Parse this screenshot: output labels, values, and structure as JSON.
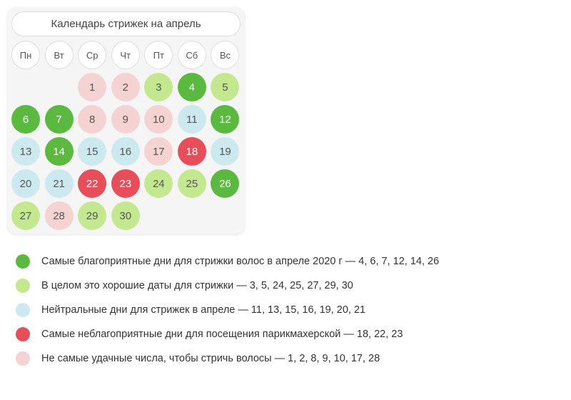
{
  "calendar": {
    "title": "Календарь стрижек на апрель",
    "day_headers": [
      "Пн",
      "Вт",
      "Ср",
      "Чт",
      "Пт",
      "Сб",
      "Вс"
    ],
    "colors": {
      "best": "#5bb93f",
      "good": "#c4e88f",
      "neutral": "#cce9f0",
      "worst": "#e84e5a",
      "bad": "#f5d3d3",
      "header_bg": "#ffffff",
      "card_bg": "#f5f5f5"
    },
    "days": [
      {
        "n": "",
        "c": "empty"
      },
      {
        "n": "",
        "c": "empty"
      },
      {
        "n": "1",
        "c": "#f5d3d3"
      },
      {
        "n": "2",
        "c": "#f5d3d3"
      },
      {
        "n": "3",
        "c": "#c4e88f"
      },
      {
        "n": "4",
        "c": "#5bb93f"
      },
      {
        "n": "5",
        "c": "#c4e88f"
      },
      {
        "n": "6",
        "c": "#5bb93f"
      },
      {
        "n": "7",
        "c": "#5bb93f"
      },
      {
        "n": "8",
        "c": "#f5d3d3"
      },
      {
        "n": "9",
        "c": "#f5d3d3"
      },
      {
        "n": "10",
        "c": "#f5d3d3"
      },
      {
        "n": "11",
        "c": "#cce9f0"
      },
      {
        "n": "12",
        "c": "#5bb93f"
      },
      {
        "n": "13",
        "c": "#cce9f0"
      },
      {
        "n": "14",
        "c": "#5bb93f"
      },
      {
        "n": "15",
        "c": "#cce9f0"
      },
      {
        "n": "16",
        "c": "#cce9f0"
      },
      {
        "n": "17",
        "c": "#f5d3d3"
      },
      {
        "n": "18",
        "c": "#e84e5a"
      },
      {
        "n": "19",
        "c": "#cce9f0"
      },
      {
        "n": "20",
        "c": "#cce9f0"
      },
      {
        "n": "21",
        "c": "#cce9f0"
      },
      {
        "n": "22",
        "c": "#e84e5a"
      },
      {
        "n": "23",
        "c": "#e84e5a"
      },
      {
        "n": "24",
        "c": "#c4e88f"
      },
      {
        "n": "25",
        "c": "#c4e88f"
      },
      {
        "n": "26",
        "c": "#5bb93f"
      },
      {
        "n": "27",
        "c": "#c4e88f"
      },
      {
        "n": "28",
        "c": "#f5d3d3"
      },
      {
        "n": "29",
        "c": "#c4e88f"
      },
      {
        "n": "30",
        "c": "#c4e88f"
      }
    ]
  },
  "legend": {
    "items": [
      {
        "color": "#5bb93f",
        "text": "Самые благоприятные дни для стрижки волос в апреле 2020 г — 4, 6, 7, 12, 14, 26"
      },
      {
        "color": "#c4e88f",
        "text": "В целом это хорошие даты для стрижки — 3, 5, 24, 25, 27, 29, 30"
      },
      {
        "color": "#cce9f0",
        "text": "Нейтральные дни для стрижек в апреле — 11, 13, 15, 16, 19, 20, 21"
      },
      {
        "color": "#e84e5a",
        "text": "Самые неблагоприятные дни для посещения парикмахерской — 18, 22, 23"
      },
      {
        "color": "#f5d3d3",
        "text": "Не самые удачные числа, чтобы стричь волосы — 1, 2, 8, 9, 10, 17, 28"
      }
    ]
  }
}
